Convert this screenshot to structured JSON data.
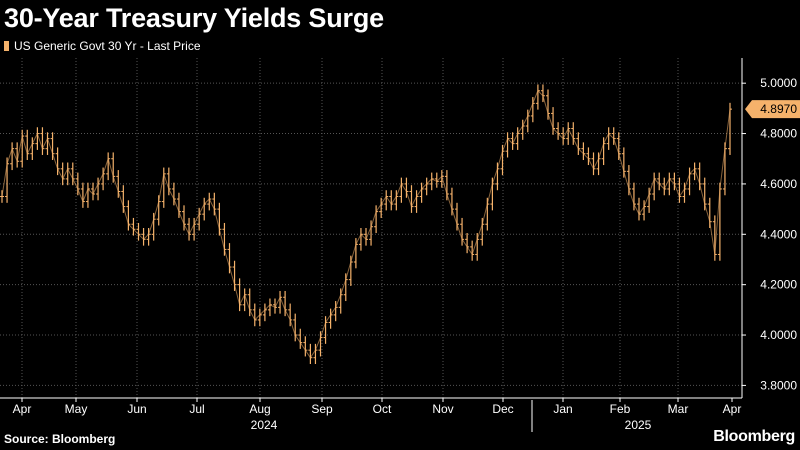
{
  "title": "30-Year Treasury Yields Surge",
  "legend_label": "US Generic Govt 30 Yr - Last Price",
  "source": "Source: Bloomberg",
  "brand": "Bloomberg",
  "colors": {
    "background": "#000000",
    "series": "#f5b26b",
    "grid": "#555555",
    "axis_text": "#ffffff",
    "last_price_bg": "#f5b26b",
    "last_price_text": "#000000"
  },
  "chart_data": {
    "type": "line",
    "title": "30-Year Treasury Yields Surge",
    "x_ticks": [
      "Apr",
      "May",
      "Jun",
      "Jul",
      "Aug",
      "Sep",
      "Oct",
      "Nov",
      "Dec",
      "Jan",
      "Feb",
      "Mar",
      "Apr"
    ],
    "year_labels": [
      "2024",
      "2025"
    ],
    "y_ticks": [
      "3.8000",
      "4.0000",
      "4.2000",
      "4.4000",
      "4.6000",
      "4.8000",
      "5.0000"
    ],
    "ylim": [
      3.75,
      5.1
    ],
    "grid": true,
    "last_price": 4.897,
    "last_price_label": "4.8970",
    "series": [
      {
        "name": "US Generic Govt 30 Yr - Last Price",
        "values": [
          4.55,
          4.68,
          4.74,
          4.69,
          4.79,
          4.72,
          4.76,
          4.8,
          4.74,
          4.78,
          4.72,
          4.66,
          4.62,
          4.66,
          4.62,
          4.58,
          4.53,
          4.58,
          4.56,
          4.6,
          4.64,
          4.7,
          4.63,
          4.57,
          4.51,
          4.44,
          4.42,
          4.4,
          4.38,
          4.4,
          4.46,
          4.53,
          4.64,
          4.58,
          4.54,
          4.49,
          4.44,
          4.4,
          4.44,
          4.48,
          4.52,
          4.54,
          4.5,
          4.42,
          4.34,
          4.27,
          4.2,
          4.12,
          4.16,
          4.1,
          4.06,
          4.08,
          4.1,
          4.12,
          4.11,
          4.15,
          4.1,
          4.06,
          4.0,
          3.97,
          3.94,
          3.91,
          3.94,
          3.99,
          4.05,
          4.08,
          4.11,
          4.16,
          4.22,
          4.29,
          4.36,
          4.4,
          4.38,
          4.43,
          4.49,
          4.52,
          4.55,
          4.52,
          4.55,
          4.6,
          4.57,
          4.51,
          4.55,
          4.58,
          4.6,
          4.62,
          4.61,
          4.63,
          4.56,
          4.5,
          4.44,
          4.38,
          4.35,
          4.32,
          4.38,
          4.44,
          4.52,
          4.6,
          4.66,
          4.73,
          4.78,
          4.76,
          4.8,
          4.83,
          4.87,
          4.92,
          4.97,
          4.95,
          4.88,
          4.82,
          4.8,
          4.78,
          4.82,
          4.78,
          4.74,
          4.72,
          4.7,
          4.66,
          4.7,
          4.76,
          4.8,
          4.78,
          4.72,
          4.65,
          4.58,
          4.52,
          4.48,
          4.51,
          4.56,
          4.62,
          4.6,
          4.58,
          4.62,
          4.6,
          4.55,
          4.58,
          4.64,
          4.66,
          4.6,
          4.52,
          4.45,
          4.32,
          4.58,
          4.74,
          4.897
        ]
      }
    ]
  }
}
